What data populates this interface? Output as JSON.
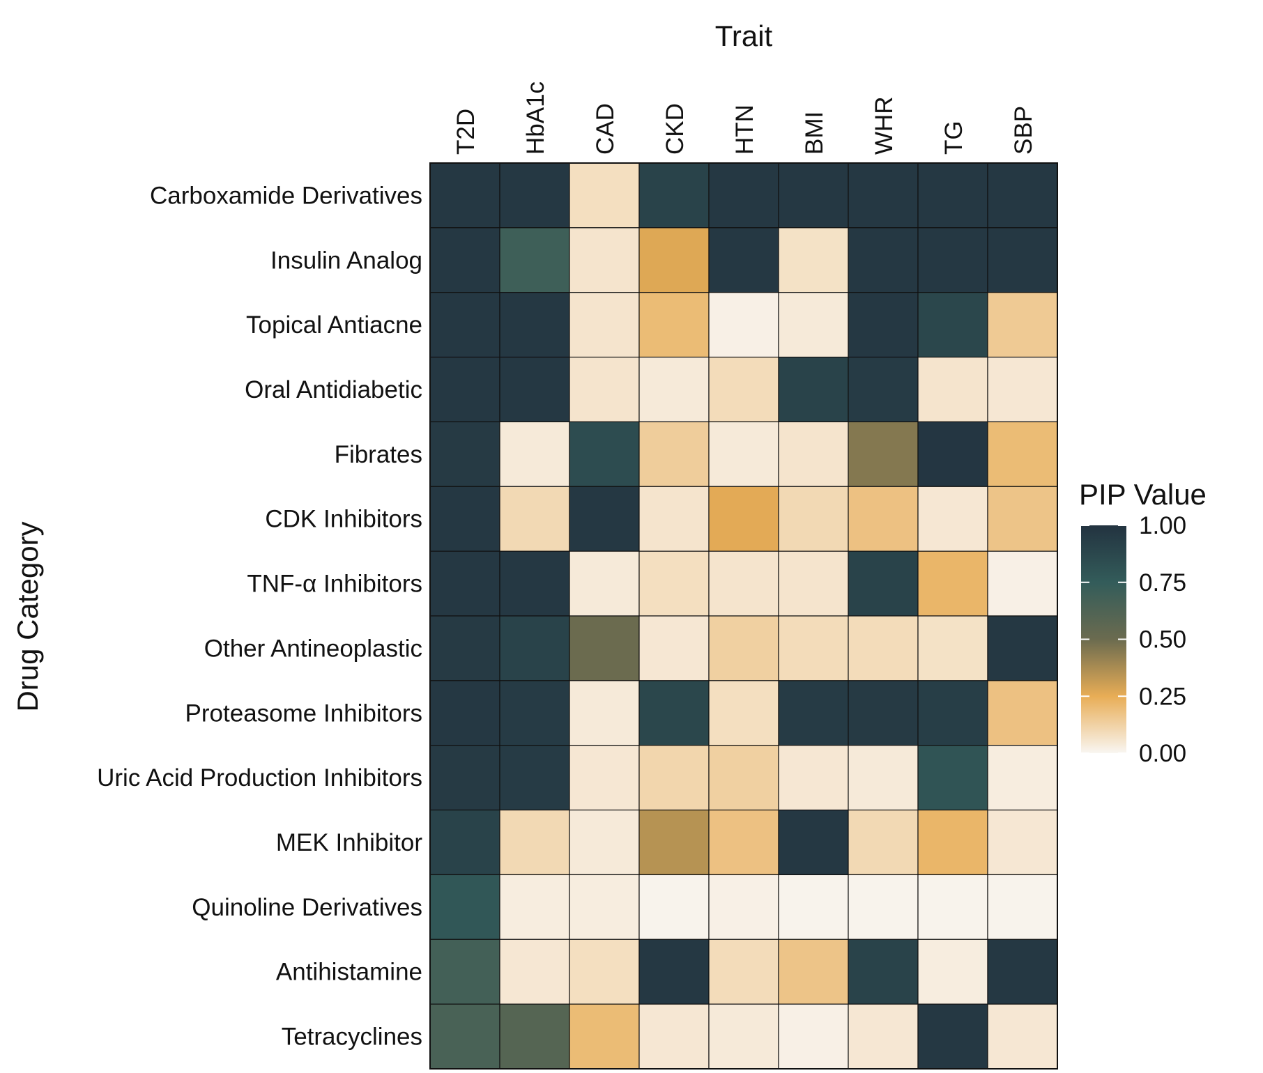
{
  "chart_data": {
    "type": "heatmap",
    "title": "Trait",
    "xlabel": "Trait",
    "ylabel": "Drug Category",
    "x_categories": [
      "T2D",
      "HbA1c",
      "CAD",
      "CKD",
      "HTN",
      "BMI",
      "WHR",
      "TG",
      "SBP"
    ],
    "y_categories": [
      "Carboxamide Derivatives",
      "Insulin Analog",
      "Topical Antiacne",
      "Oral Antidiabetic",
      "Fibrates",
      "CDK Inhibitors",
      "TNF-α Inhibitors",
      "Other Antineoplastic",
      "Proteasome Inhibitors",
      "Uric Acid Production Inhibitors",
      "MEK Inhibitor",
      "Quinoline Derivatives",
      "Antihistamine",
      "Tetracyclines"
    ],
    "values": [
      [
        0.97,
        0.97,
        0.08,
        0.9,
        0.97,
        0.97,
        0.97,
        0.97,
        0.97
      ],
      [
        0.97,
        0.7,
        0.06,
        0.27,
        0.97,
        0.07,
        0.97,
        0.97,
        0.97
      ],
      [
        0.97,
        0.97,
        0.06,
        0.2,
        0.02,
        0.04,
        0.97,
        0.88,
        0.15
      ],
      [
        0.97,
        0.97,
        0.06,
        0.04,
        0.09,
        0.9,
        0.95,
        0.06,
        0.05
      ],
      [
        0.96,
        0.04,
        0.85,
        0.14,
        0.04,
        0.06,
        0.45,
        0.98,
        0.2
      ],
      [
        0.97,
        0.1,
        0.97,
        0.06,
        0.26,
        0.1,
        0.18,
        0.05,
        0.17
      ],
      [
        0.97,
        0.97,
        0.04,
        0.08,
        0.06,
        0.06,
        0.9,
        0.22,
        0.02
      ],
      [
        0.96,
        0.9,
        0.5,
        0.05,
        0.13,
        0.09,
        0.09,
        0.07,
        0.97
      ],
      [
        0.97,
        0.95,
        0.04,
        0.88,
        0.08,
        0.95,
        0.96,
        0.93,
        0.18
      ],
      [
        0.96,
        0.95,
        0.05,
        0.11,
        0.13,
        0.05,
        0.04,
        0.8,
        0.03
      ],
      [
        0.9,
        0.1,
        0.04,
        0.35,
        0.18,
        0.97,
        0.1,
        0.22,
        0.05
      ],
      [
        0.78,
        0.03,
        0.03,
        0.01,
        0.02,
        0.01,
        0.01,
        0.01,
        0.01
      ],
      [
        0.68,
        0.05,
        0.08,
        0.97,
        0.09,
        0.17,
        0.9,
        0.03,
        0.97
      ],
      [
        0.65,
        0.6,
        0.2,
        0.05,
        0.04,
        0.02,
        0.05,
        0.97,
        0.05
      ]
    ],
    "colorbar": {
      "title": "PIP Value",
      "range": [
        0,
        1
      ],
      "ticks": [
        "0.00",
        "0.25",
        "0.50",
        "0.75",
        "1.00"
      ],
      "colors": [
        "#f9f6f2",
        "#e8ad56",
        "#6b6b4f",
        "#335c5a",
        "#233340"
      ]
    },
    "grid": false
  }
}
